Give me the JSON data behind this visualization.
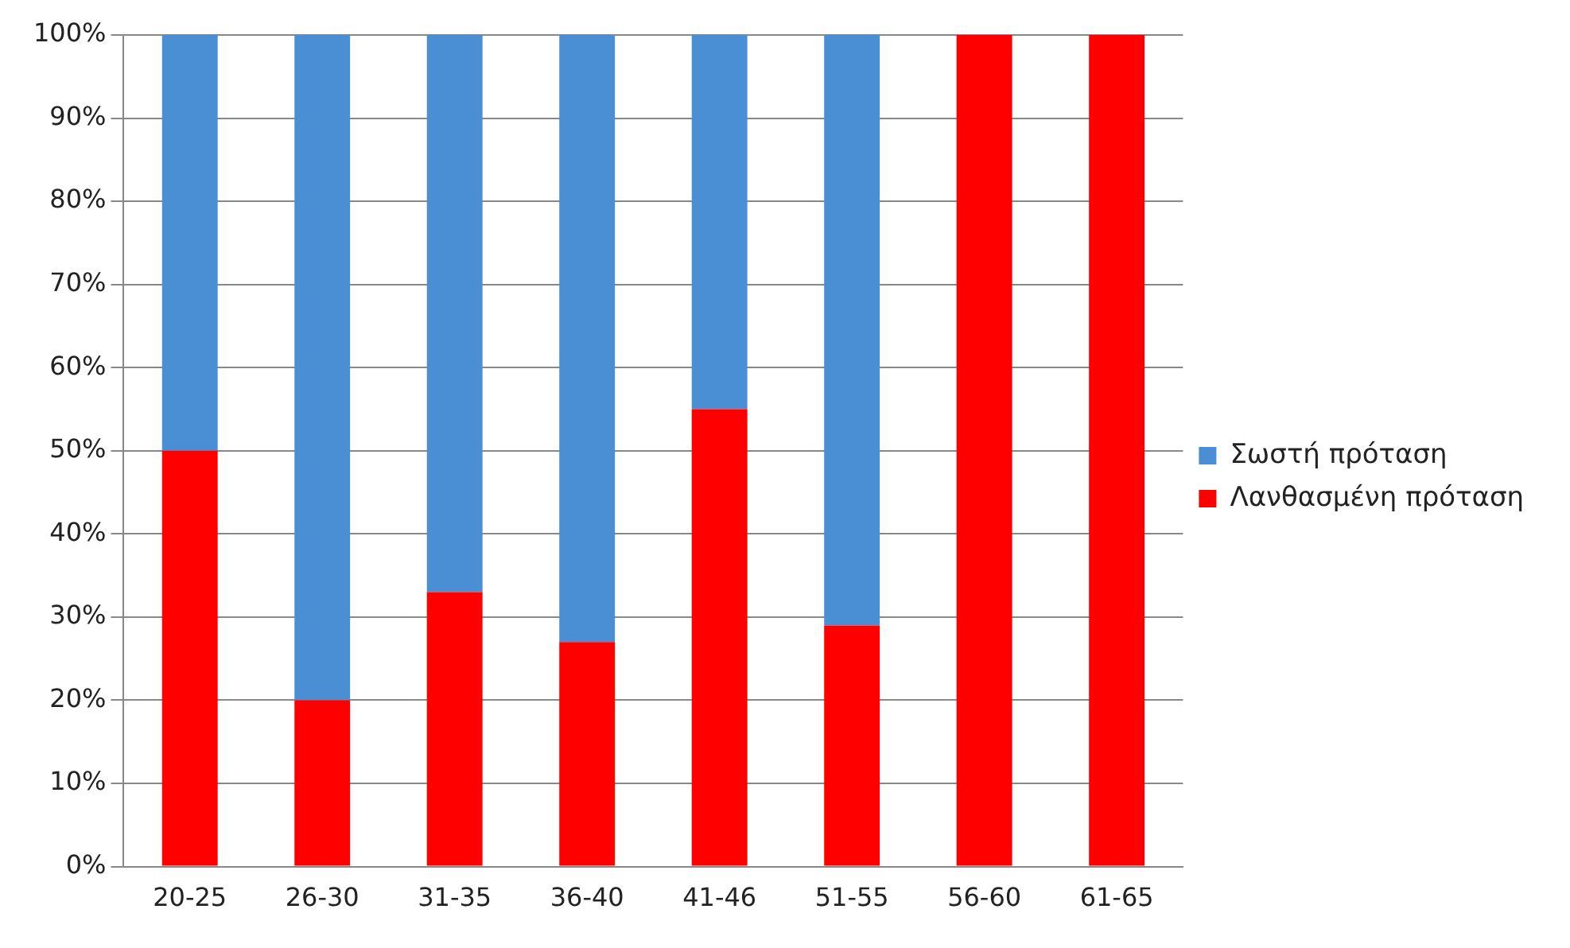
{
  "chart_data": {
    "type": "bar",
    "stacked": true,
    "categories": [
      "20-25",
      "26-30",
      "31-35",
      "36-40",
      "41-46",
      "51-55",
      "56-60",
      "61-65"
    ],
    "series": [
      {
        "name": "Λανθασμένη πρόταση",
        "color": "#ff0000",
        "values": [
          50,
          20,
          33,
          27,
          55,
          29,
          100,
          100
        ]
      },
      {
        "name": "Σωστή πρόταση",
        "color": "#4a8fd4",
        "values": [
          50,
          80,
          67,
          73,
          45,
          71,
          0,
          0
        ]
      }
    ],
    "ylim": [
      0,
      100
    ],
    "yticks": [
      {
        "value": 0,
        "label": "0%"
      },
      {
        "value": 10,
        "label": "10%"
      },
      {
        "value": 20,
        "label": "20%"
      },
      {
        "value": 30,
        "label": "30%"
      },
      {
        "value": 40,
        "label": "40%"
      },
      {
        "value": 50,
        "label": "50%"
      },
      {
        "value": 60,
        "label": "60%"
      },
      {
        "value": 70,
        "label": "70%"
      },
      {
        "value": 80,
        "label": "80%"
      },
      {
        "value": 90,
        "label": "90%"
      },
      {
        "value": 100,
        "label": "100%"
      }
    ],
    "grid": "y",
    "legend": "right"
  }
}
